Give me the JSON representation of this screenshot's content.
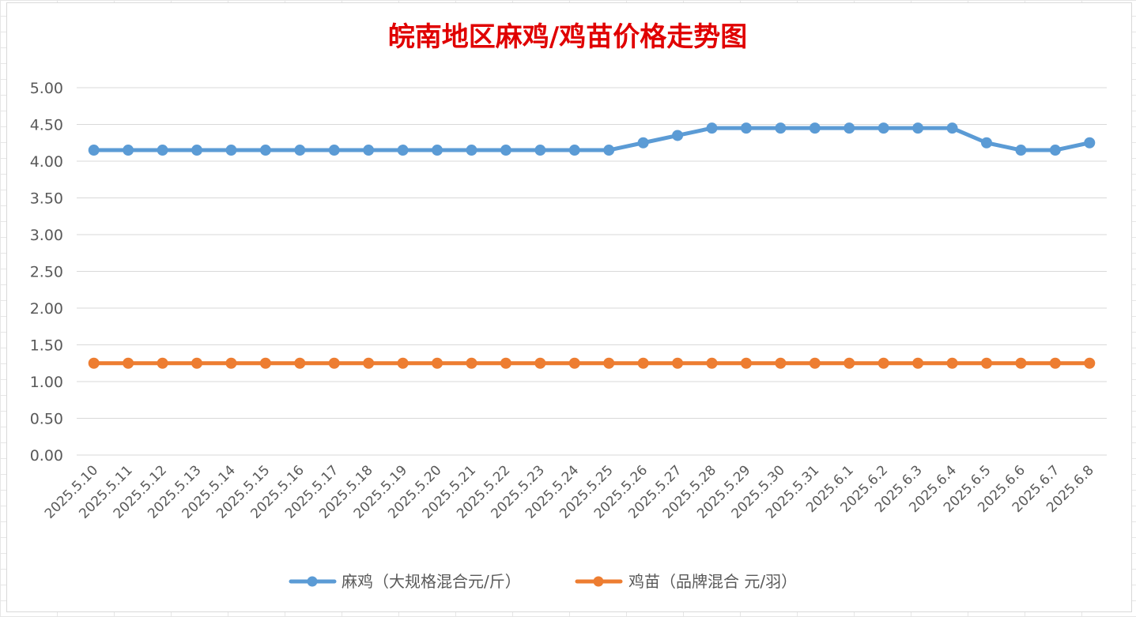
{
  "chart_data": {
    "type": "line",
    "title": "皖南地区麻鸡/鸡苗价格走势图",
    "title_color": "#e00000",
    "xlabel": "",
    "ylabel": "",
    "ylim": [
      0,
      5
    ],
    "yticks": [
      "0.00",
      "0.50",
      "1.00",
      "1.50",
      "2.00",
      "2.50",
      "3.00",
      "3.50",
      "4.00",
      "4.50",
      "5.00"
    ],
    "grid": true,
    "legend_position": "bottom",
    "categories": [
      "2025.5.10",
      "2025.5.11",
      "2025.5.12",
      "2025.5.13",
      "2025.5.14",
      "2025.5.15",
      "2025.5.16",
      "2025.5.17",
      "2025.5.18",
      "2025.5.19",
      "2025.5.20",
      "2025.5.21",
      "2025.5.22",
      "2025.5.23",
      "2025.5.24",
      "2025.5.25",
      "2025.5.26",
      "2025.5.27",
      "2025.5.28",
      "2025.5.29",
      "2025.5.30",
      "2025.5.31",
      "2025.6.1",
      "2025.6.2",
      "2025.6.3",
      "2025.6.4",
      "2025.6.5",
      "2025.6.6",
      "2025.6.7",
      "2025.6.8"
    ],
    "series": [
      {
        "name": "麻鸡（大规格混合元/斤）",
        "color": "#5b9bd5",
        "values": [
          4.15,
          4.15,
          4.15,
          4.15,
          4.15,
          4.15,
          4.15,
          4.15,
          4.15,
          4.15,
          4.15,
          4.15,
          4.15,
          4.15,
          4.15,
          4.15,
          4.25,
          4.35,
          4.45,
          4.45,
          4.45,
          4.45,
          4.45,
          4.45,
          4.45,
          4.45,
          4.25,
          4.15,
          4.15,
          4.25
        ]
      },
      {
        "name": "鸡苗（品牌混合 元/羽）",
        "color": "#ed7d31",
        "values": [
          1.25,
          1.25,
          1.25,
          1.25,
          1.25,
          1.25,
          1.25,
          1.25,
          1.25,
          1.25,
          1.25,
          1.25,
          1.25,
          1.25,
          1.25,
          1.25,
          1.25,
          1.25,
          1.25,
          1.25,
          1.25,
          1.25,
          1.25,
          1.25,
          1.25,
          1.25,
          1.25,
          1.25,
          1.25,
          1.25
        ]
      }
    ]
  }
}
